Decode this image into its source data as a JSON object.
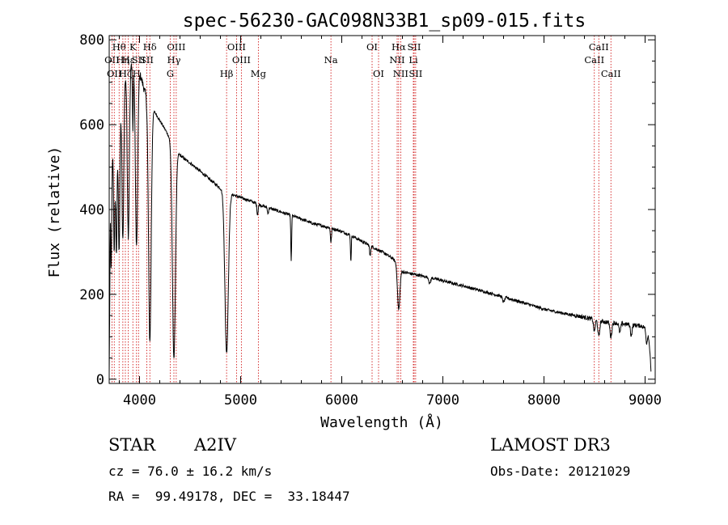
{
  "chart_data": {
    "type": "line",
    "title": "spec-56230-GAC098N33B1_sp09-015.fits",
    "xlabel": "Wavelength (Å)",
    "ylabel": "Flux (relative)",
    "xlim": [
      3700,
      9100
    ],
    "ylim": [
      -10,
      810
    ],
    "xticks": [
      4000,
      5000,
      6000,
      7000,
      8000,
      9000
    ],
    "yticks": [
      0,
      200,
      400,
      600,
      800
    ],
    "grid": false,
    "line_color": "#000000",
    "marker_color": "#cc0000",
    "continuum": [
      [
        3700,
        10
      ],
      [
        3712,
        420
      ],
      [
        3730,
        520
      ],
      [
        3760,
        580
      ],
      [
        3800,
        650
      ],
      [
        3830,
        690
      ],
      [
        3860,
        720
      ],
      [
        3890,
        740
      ],
      [
        3920,
        745
      ],
      [
        3950,
        740
      ],
      [
        3980,
        725
      ],
      [
        4010,
        715
      ],
      [
        4050,
        680
      ],
      [
        4100,
        650
      ],
      [
        4150,
        630
      ],
      [
        4200,
        610
      ],
      [
        4250,
        590
      ],
      [
        4300,
        568
      ],
      [
        4350,
        545
      ],
      [
        4400,
        528
      ],
      [
        4450,
        518
      ],
      [
        4500,
        510
      ],
      [
        4600,
        490
      ],
      [
        4700,
        470
      ],
      [
        4800,
        450
      ],
      [
        4900,
        437
      ],
      [
        5000,
        428
      ],
      [
        5100,
        420
      ],
      [
        5200,
        410
      ],
      [
        5300,
        402
      ],
      [
        5400,
        394
      ],
      [
        5500,
        386
      ],
      [
        5600,
        378
      ],
      [
        5700,
        368
      ],
      [
        5800,
        362
      ],
      [
        5900,
        356
      ],
      [
        6000,
        348
      ],
      [
        6100,
        338
      ],
      [
        6200,
        325
      ],
      [
        6300,
        312
      ],
      [
        6400,
        300
      ],
      [
        6500,
        285
      ],
      [
        6560,
        270
      ],
      [
        6600,
        253
      ],
      [
        6700,
        248
      ],
      [
        6800,
        243
      ],
      [
        6900,
        238
      ],
      [
        7000,
        232
      ],
      [
        7200,
        220
      ],
      [
        7400,
        207
      ],
      [
        7600,
        194
      ],
      [
        7800,
        180
      ],
      [
        8000,
        165
      ],
      [
        8200,
        155
      ],
      [
        8400,
        146
      ],
      [
        8600,
        135
      ],
      [
        8800,
        130
      ],
      [
        8950,
        126
      ],
      [
        9000,
        122
      ],
      [
        9030,
        110
      ],
      [
        9050,
        60
      ],
      [
        9060,
        10
      ]
    ],
    "absorption_features": [
      {
        "center": 3720,
        "depth": 200,
        "width": 5
      },
      {
        "center": 3750,
        "depth": 260,
        "width": 6
      },
      {
        "center": 3771,
        "depth": 300,
        "width": 7
      },
      {
        "center": 3798,
        "depth": 340,
        "width": 8
      },
      {
        "center": 3835,
        "depth": 370,
        "width": 9
      },
      {
        "center": 3889,
        "depth": 400,
        "width": 10
      },
      {
        "center": 3934,
        "depth": 160,
        "width": 4
      },
      {
        "center": 3970,
        "depth": 420,
        "width": 11
      },
      {
        "center": 4102,
        "depth": 560,
        "width": 13
      },
      {
        "center": 4340,
        "depth": 500,
        "width": 15
      },
      {
        "center": 4861,
        "depth": 380,
        "width": 17
      },
      {
        "center": 5167,
        "depth": 25,
        "width": 6
      },
      {
        "center": 5270,
        "depth": 15,
        "width": 5
      },
      {
        "center": 5500,
        "depth": 110,
        "width": 4
      },
      {
        "center": 5893,
        "depth": 35,
        "width": 5
      },
      {
        "center": 6090,
        "depth": 60,
        "width": 4
      },
      {
        "center": 6280,
        "depth": 25,
        "width": 5
      },
      {
        "center": 6563,
        "depth": 105,
        "width": 12
      },
      {
        "center": 6870,
        "depth": 15,
        "width": 8
      },
      {
        "center": 7600,
        "depth": 12,
        "width": 10
      },
      {
        "center": 8498,
        "depth": 28,
        "width": 8
      },
      {
        "center": 8542,
        "depth": 38,
        "width": 9
      },
      {
        "center": 8662,
        "depth": 34,
        "width": 9
      },
      {
        "center": 8750,
        "depth": 22,
        "width": 8
      },
      {
        "center": 8863,
        "depth": 25,
        "width": 8
      },
      {
        "center": 9015,
        "depth": 30,
        "width": 8
      }
    ],
    "line_markers": [
      {
        "wavelength": 3727,
        "label": "OII",
        "row": 2
      },
      {
        "wavelength": 3750,
        "label": "OII",
        "row": 3
      },
      {
        "wavelength": 3798,
        "label": "Hθ",
        "row": 1
      },
      {
        "wavelength": 3835,
        "label": "Hη",
        "row": 2
      },
      {
        "wavelength": 3860,
        "label": "Hζ",
        "row": 3
      },
      {
        "wavelength": 3889,
        "label": "Hε",
        "row": 2
      },
      {
        "wavelength": 3934,
        "label": "K",
        "row": 1
      },
      {
        "wavelength": 3970,
        "label": "H",
        "row": 3
      },
      {
        "wavelength": 3990,
        "label": "SII",
        "row": 2
      },
      {
        "wavelength": 4102,
        "label": "Hδ",
        "row": 1
      },
      {
        "wavelength": 4072,
        "label": "SII",
        "row": 2
      },
      {
        "wavelength": 4304,
        "label": "G",
        "row": 3
      },
      {
        "wavelength": 4340,
        "label": "Hγ",
        "row": 2
      },
      {
        "wavelength": 4363,
        "label": "OIII",
        "row": 1
      },
      {
        "wavelength": 4861,
        "label": "Hβ",
        "row": 3
      },
      {
        "wavelength": 4959,
        "label": "OIII",
        "row": 1
      },
      {
        "wavelength": 5007,
        "label": "OIII",
        "row": 2
      },
      {
        "wavelength": 5175,
        "label": "Mg",
        "row": 3
      },
      {
        "wavelength": 5893,
        "label": "Na",
        "row": 2
      },
      {
        "wavelength": 6300,
        "label": "OI",
        "row": 1
      },
      {
        "wavelength": 6364,
        "label": "OI",
        "row": 3
      },
      {
        "wavelength": 6548,
        "label": "NII",
        "row": 2
      },
      {
        "wavelength": 6563,
        "label": "Hα",
        "row": 1
      },
      {
        "wavelength": 6583,
        "label": "NII",
        "row": 3
      },
      {
        "wavelength": 6708,
        "label": "Li",
        "row": 2
      },
      {
        "wavelength": 6716,
        "label": "SII",
        "row": 1
      },
      {
        "wavelength": 6731,
        "label": "SII",
        "row": 3
      },
      {
        "wavelength": 8498,
        "label": "CaII",
        "row": 2
      },
      {
        "wavelength": 8542,
        "label": "CaII",
        "row": 1
      },
      {
        "wavelength": 8662,
        "label": "CaII",
        "row": 3
      }
    ]
  },
  "info": {
    "object_class": "STAR",
    "subclass": "A2IV",
    "survey": "LAMOST DR3",
    "cz_line": "cz = 76.0 ± 16.2 km/s",
    "obs_date_line": "Obs-Date: 20121029",
    "radec_line": "RA =  99.49178, DEC =  33.18447"
  }
}
